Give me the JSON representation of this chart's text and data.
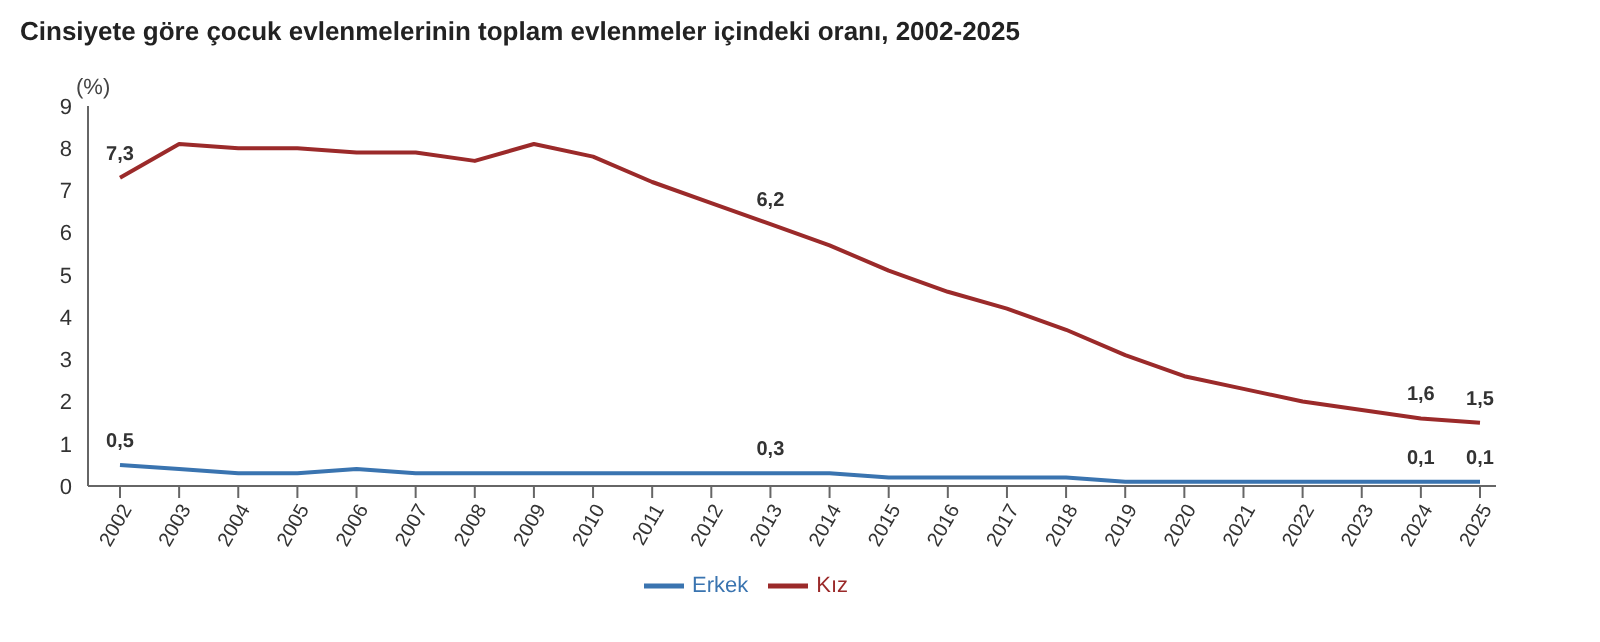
{
  "chart_data": {
    "type": "line",
    "title": "Cinsiyete göre çocuk evlenmelerinin toplam evlenmeler içindeki oranı, 2002-2025",
    "ylabel": "(%)",
    "categories": [
      "2002",
      "2003",
      "2004",
      "2005",
      "2006",
      "2007",
      "2008",
      "2009",
      "2010",
      "2011",
      "2012",
      "2013",
      "2014",
      "2015",
      "2016",
      "2017",
      "2018",
      "2019",
      "2020",
      "2021",
      "2022",
      "2023",
      "2024",
      "2025"
    ],
    "series": [
      {
        "name": "Erkek",
        "color": "#3a74b0",
        "values": [
          0.5,
          0.4,
          0.3,
          0.3,
          0.4,
          0.3,
          0.3,
          0.3,
          0.3,
          0.3,
          0.3,
          0.3,
          0.3,
          0.2,
          0.2,
          0.2,
          0.2,
          0.1,
          0.1,
          0.1,
          0.1,
          0.1,
          0.1,
          0.1
        ],
        "value_labels": [
          "0,5",
          null,
          null,
          null,
          null,
          null,
          null,
          null,
          null,
          null,
          null,
          "0,3",
          null,
          null,
          null,
          null,
          null,
          null,
          null,
          null,
          null,
          null,
          "0,1",
          "0,1"
        ]
      },
      {
        "name": "Kız",
        "color": "#9b2a2a",
        "values": [
          7.3,
          8.1,
          8.0,
          8.0,
          7.9,
          7.9,
          7.7,
          8.1,
          7.8,
          7.2,
          6.7,
          6.2,
          5.7,
          5.1,
          4.6,
          4.2,
          3.7,
          3.1,
          2.6,
          2.3,
          2.0,
          1.8,
          1.6,
          1.5
        ],
        "value_labels": [
          "7,3",
          null,
          null,
          null,
          null,
          null,
          null,
          null,
          null,
          null,
          null,
          "6,2",
          null,
          null,
          null,
          null,
          null,
          null,
          null,
          null,
          null,
          null,
          "1,6",
          "1,5"
        ]
      }
    ],
    "ylim": [
      0,
      9
    ],
    "yticks": [
      0,
      1,
      2,
      3,
      4,
      5,
      6,
      7,
      8,
      9
    ],
    "grid": false,
    "legend": "bottom",
    "line_style": "solid"
  }
}
